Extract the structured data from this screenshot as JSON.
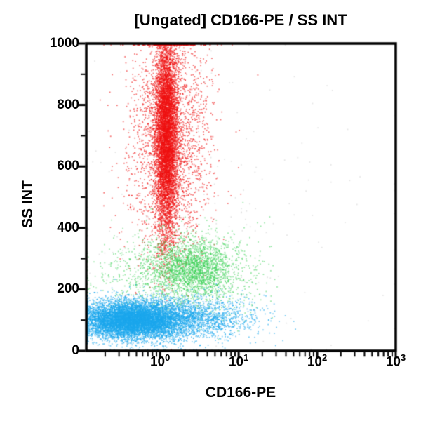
{
  "window": {
    "background": "#ffffff"
  },
  "chart_data": {
    "type": "scatter",
    "subtype": "flow-cytometry-dot-plot",
    "title": "[Ungated] CD166-PE / SS INT",
    "xlabel": "CD166-PE",
    "ylabel": "SS INT",
    "x_scale": "log",
    "x_range": [
      0.115,
      1000
    ],
    "y_scale": "linear",
    "y_range": [
      0,
      1000
    ],
    "grid": false,
    "legend": false,
    "x_major_ticks": [
      {
        "value": 1,
        "base": "10",
        "exp": "0"
      },
      {
        "value": 10,
        "base": "10",
        "exp": "1"
      },
      {
        "value": 100,
        "base": "10",
        "exp": "2"
      },
      {
        "value": 1000,
        "base": "10",
        "exp": "3"
      }
    ],
    "y_major_ticks": [
      0,
      200,
      400,
      600,
      800,
      1000
    ],
    "y_minor_ticks": [
      100,
      300,
      500,
      700,
      900
    ],
    "axis_color": "#000000",
    "seed": 42,
    "populations": [
      {
        "name": "granulocytes-high-ss",
        "color": "#ee1010",
        "n": 9000,
        "dot_alpha": 0.6,
        "components": [
          {
            "w": 0.72,
            "x_log10_mean": 0.08,
            "x_log10_sd": 0.07,
            "y_mean": 700,
            "y_sd": 165
          },
          {
            "w": 0.28,
            "x_log10_mean": 0.13,
            "x_log10_sd": 0.26,
            "y_mean": 690,
            "y_sd": 195
          }
        ]
      },
      {
        "name": "monocytes-mid-ss",
        "color": "#33cf50",
        "n": 3000,
        "dot_alpha": 0.5,
        "components": [
          {
            "w": 0.6,
            "x_log10_mean": 0.45,
            "x_log10_sd": 0.28,
            "y_mean": 265,
            "y_sd": 48
          },
          {
            "w": 0.4,
            "x_log10_mean": 0.25,
            "x_log10_sd": 0.5,
            "y_mean": 255,
            "y_sd": 70
          }
        ]
      },
      {
        "name": "lymphocytes-low-ss",
        "color": "#1aa6ec",
        "n": 10000,
        "dot_alpha": 0.6,
        "components": [
          {
            "w": 0.75,
            "x_log10_mean": -0.38,
            "x_log10_sd": 0.32,
            "y_mean": 100,
            "y_sd": 30
          },
          {
            "w": 0.25,
            "x_log10_mean": 0.25,
            "x_log10_sd": 0.45,
            "y_mean": 104,
            "y_sd": 36
          }
        ]
      },
      {
        "name": "debris-scatter",
        "color": "#c4c4c4",
        "n": 220,
        "dot_alpha": 0.45,
        "components": [
          {
            "w": 1,
            "x_log10_mean": 0.6,
            "x_log10_sd": 1.05,
            "y_mean": 380,
            "y_sd": 290
          }
        ]
      }
    ]
  }
}
